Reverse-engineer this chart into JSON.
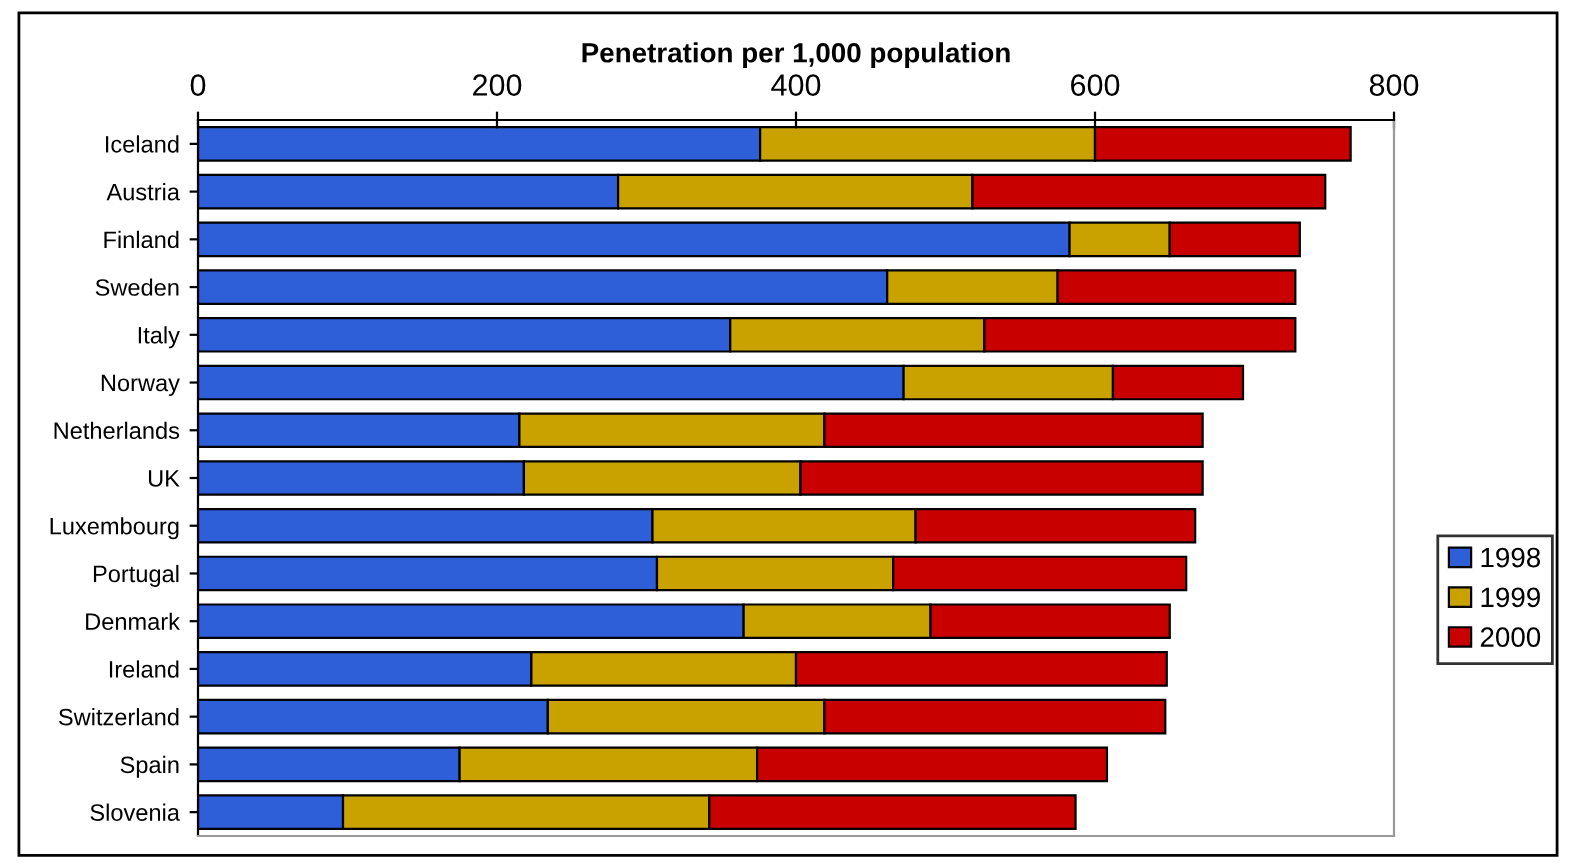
{
  "chart_data": {
    "type": "bar",
    "orientation": "horizontal",
    "stacked": true,
    "xlabel": "Penetration per 1,000 population",
    "categories": [
      "Iceland",
      "Austria",
      "Finland",
      "Sweden",
      "Italy",
      "Norway",
      "Netherlands",
      "UK",
      "Luxembourg",
      "Portugal",
      "Denmark",
      "Ireland",
      "Switzerland",
      "Spain",
      "Slovenia"
    ],
    "series": [
      {
        "name": "1998",
        "color": "#2f5fd8",
        "values": [
          376,
          281,
          583,
          461,
          356,
          472,
          215,
          218,
          304,
          307,
          365,
          223,
          234,
          175,
          97
        ]
      },
      {
        "name": "1999",
        "color": "#c9a200",
        "values": [
          224,
          237,
          67,
          114,
          170,
          140,
          204,
          185,
          176,
          158,
          125,
          177,
          185,
          199,
          245
        ]
      },
      {
        "name": "2000",
        "color": "#c80000",
        "values": [
          171,
          236,
          87,
          159,
          208,
          87,
          253,
          269,
          187,
          196,
          160,
          248,
          228,
          234,
          245
        ]
      }
    ],
    "xlim": [
      0,
      800
    ],
    "xticks": [
      0,
      200,
      400,
      600,
      800
    ],
    "grid": false,
    "legend": "right"
  }
}
